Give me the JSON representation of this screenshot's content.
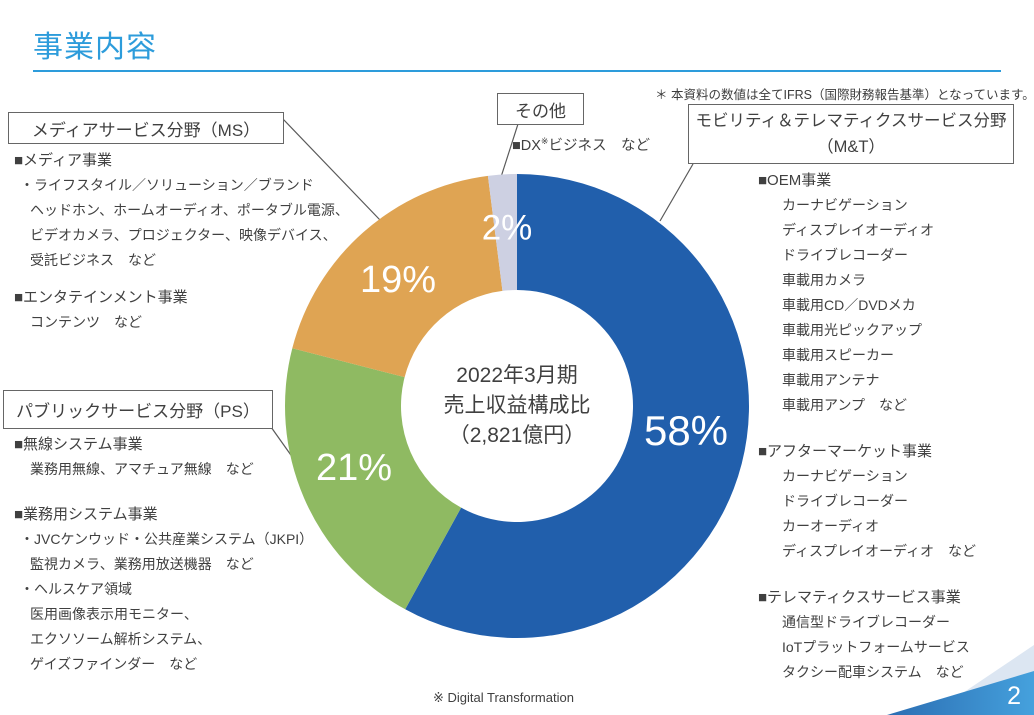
{
  "slide": {
    "title": "事業内容",
    "ifrs_note": "＊ 本資料の数値は全てIFRS（国際財務報告基準）となっています。",
    "footnote": "※ Digital Transformation",
    "page_number": "2"
  },
  "segments": {
    "ms": {
      "box_label": "メディアサービス分野（MS）",
      "groups": [
        {
          "heading": "■メディア事業",
          "items": [
            "・ライフスタイル／ソリューション／ブランド",
            "ヘッドホン、ホームオーディオ、ポータブル電源、",
            "ビデオカメラ、プロジェクター、映像デバイス、",
            "受託ビジネス　など"
          ]
        },
        {
          "heading": "■エンタテインメント事業",
          "items": [
            "コンテンツ　など"
          ]
        }
      ]
    },
    "other": {
      "box_label": "その他",
      "note": {
        "prefix": "■DX",
        "sup": "※",
        "suffix": "ビジネス　など"
      }
    },
    "mt": {
      "box_label_line1": "モビリティ＆テレマティクスサービス分野",
      "box_label_line2": "（M&T）",
      "groups": [
        {
          "heading": "■OEM事業",
          "items": [
            "カーナビゲーション",
            "ディスプレイオーディオ",
            "ドライブレコーダー",
            "車載用カメラ",
            "車載用CD／DVDメカ",
            "車載用光ピックアップ",
            "車載用スピーカー",
            "車載用アンテナ",
            "車載用アンプ　など"
          ]
        },
        {
          "heading": "■アフターマーケット事業",
          "items": [
            "カーナビゲーション",
            "ドライブレコーダー",
            "カーオーディオ",
            "ディスプレイオーディオ　など"
          ]
        },
        {
          "heading": "■テレマティクスサービス事業",
          "items": [
            "通信型ドライブレコーダー",
            "IoTプラットフォームサービス",
            "タクシー配車システム　など"
          ]
        }
      ]
    },
    "ps": {
      "box_label": "パブリックサービス分野（PS）",
      "groups": [
        {
          "heading": "■無線システム事業",
          "items": [
            "業務用無線、アマチュア無線　など"
          ]
        },
        {
          "heading": "■業務用システム事業",
          "items": [
            "・JVCケンウッド・公共産業システム（JKPI）",
            "監視カメラ、業務用放送機器　など",
            "・ヘルスケア領域",
            "医用画像表示用モニター、",
            "エクソソーム解析システム、",
            "ゲイズファインダー　など"
          ]
        }
      ]
    }
  },
  "chart_data": {
    "type": "pie",
    "donut": true,
    "title": "2022年3月期 売上収益構成比（2,821億円）",
    "center_label_lines": [
      "2022年3月期",
      "売上収益構成比",
      "（2,821億円）"
    ],
    "categories": [
      "モビリティ＆テレマティクスサービス分野（M&T）",
      "パブリックサービス分野（PS）",
      "メディアサービス分野（MS）",
      "その他"
    ],
    "ids": [
      "mt",
      "ps",
      "ms",
      "other"
    ],
    "values": [
      58,
      21,
      19,
      2
    ],
    "labels": [
      "58%",
      "21%",
      "19%",
      "2%"
    ],
    "colors": [
      "#215FAC",
      "#8FBA62",
      "#DFA453",
      "#CDD0E2"
    ],
    "start_angle_deg": 0,
    "direction": "clockwise",
    "legend": "none"
  },
  "colors": {
    "title_blue": "#2D9CDB",
    "text_dark": "#404040",
    "connector": "#595959",
    "wedge_light": "#DCE6F2",
    "wedge_dark_start": "#2B6DB2",
    "wedge_dark_end": "#45A1DD"
  }
}
